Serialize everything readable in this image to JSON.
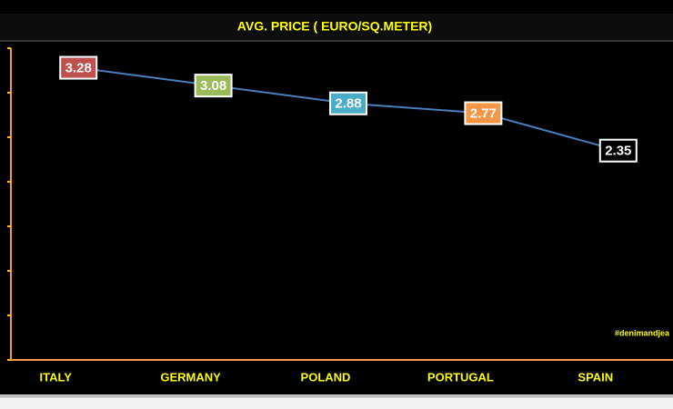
{
  "chart_data": {
    "type": "line",
    "title": "AVG. PRICE ( EURO/SQ.METER)",
    "categories": [
      "ITALY",
      "GERMANY",
      "POLAND",
      "PORTUGAL",
      "SPAIN"
    ],
    "values": [
      3.28,
      3.08,
      2.88,
      2.77,
      2.35
    ],
    "color": "#4a7ebf",
    "label_colors": [
      "#c0504d",
      "#9bbb59",
      "#4bacc6",
      "#f79646",
      "#000000"
    ],
    "ylim": [
      0,
      3.5
    ],
    "yticks": [
      0,
      0.5,
      1,
      1.5,
      2,
      2.5,
      3,
      3.5
    ],
    "annotation": "#denimandjea"
  }
}
